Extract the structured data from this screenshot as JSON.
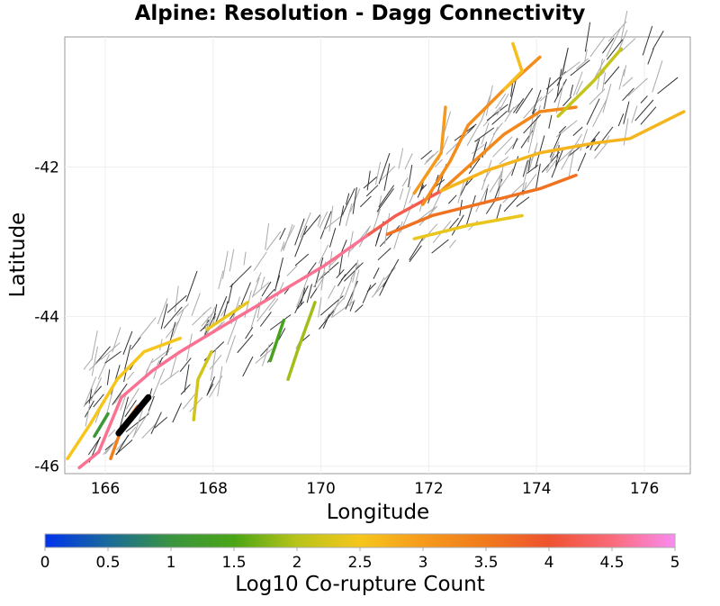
{
  "chart_data": {
    "type": "map",
    "title": "Alpine: Resolution - Dagg Connectivity",
    "xlabel": "Longitude",
    "ylabel": "Latitude",
    "xlim": [
      165.25,
      176.85
    ],
    "ylim": [
      -46.1,
      -40.26
    ],
    "xticks": [
      166,
      168,
      170,
      172,
      174,
      176
    ],
    "yticks": [
      -42,
      -44,
      -46
    ],
    "grid": true,
    "colorbar": {
      "label": "Log10 Co-rupture Count",
      "range": [
        0,
        5
      ],
      "ticks": [
        "0",
        "0.5",
        "1",
        "1.5",
        "2",
        "2.5",
        "3",
        "3.5",
        "4",
        "4.5",
        "5"
      ],
      "stops": [
        {
          "v": 0,
          "c": "#0033ee"
        },
        {
          "v": 0.5,
          "c": "#1a6a9a"
        },
        {
          "v": 1,
          "c": "#3a9440"
        },
        {
          "v": 1.5,
          "c": "#4aa516"
        },
        {
          "v": 2,
          "c": "#b8c41a"
        },
        {
          "v": 2.5,
          "c": "#f6c61c"
        },
        {
          "v": 3,
          "c": "#f69a1c"
        },
        {
          "v": 3.5,
          "c": "#f07a1c"
        },
        {
          "v": 4,
          "c": "#ee5230"
        },
        {
          "v": 4.5,
          "c": "#fa6a7a"
        },
        {
          "v": 5,
          "c": "#f98cf0"
        }
      ]
    },
    "source_fault": {
      "name": "Alpine: Resolution - Dagg",
      "points": [
        [
          166.25,
          -45.56
        ],
        [
          166.8,
          -45.08
        ]
      ]
    },
    "faults": [
      {
        "value": 4.6,
        "points": [
          [
            165.52,
            -46.02
          ],
          [
            165.88,
            -45.81
          ],
          [
            166.3,
            -45.08
          ],
          [
            166.88,
            -44.72
          ],
          [
            167.39,
            -44.47
          ],
          [
            168.22,
            -44.11
          ],
          [
            169.06,
            -43.75
          ],
          [
            170.06,
            -43.32
          ],
          [
            170.89,
            -42.9
          ]
        ]
      },
      {
        "value": 4.2,
        "points": [
          [
            170.89,
            -42.9
          ],
          [
            171.39,
            -42.65
          ],
          [
            172.23,
            -42.32
          ]
        ]
      },
      {
        "value": 3.3,
        "points": [
          [
            172.23,
            -42.32
          ],
          [
            173.4,
            -41.56
          ],
          [
            174.06,
            -41.26
          ],
          [
            174.73,
            -41.2
          ]
        ]
      },
      {
        "value": 2.7,
        "points": [
          [
            172.23,
            -42.32
          ],
          [
            173.06,
            -42.05
          ],
          [
            174.06,
            -41.81
          ],
          [
            175.07,
            -41.68
          ],
          [
            175.73,
            -41.62
          ],
          [
            176.73,
            -41.26
          ]
        ]
      },
      {
        "value": 3.2,
        "points": [
          [
            171.89,
            -42.5
          ],
          [
            172.39,
            -41.93
          ],
          [
            172.73,
            -41.44
          ],
          [
            173.4,
            -40.96
          ],
          [
            174.06,
            -40.53
          ]
        ]
      },
      {
        "value": 3.0,
        "points": [
          [
            171.73,
            -42.35
          ],
          [
            172.23,
            -41.81
          ],
          [
            172.31,
            -41.2
          ]
        ]
      },
      {
        "value": 2.6,
        "points": [
          [
            173.4,
            -40.96
          ],
          [
            173.73,
            -40.72
          ],
          [
            173.56,
            -40.35
          ]
        ]
      },
      {
        "value": 2.1,
        "points": [
          [
            174.4,
            -41.32
          ],
          [
            175.07,
            -40.84
          ],
          [
            175.57,
            -40.42
          ]
        ]
      },
      {
        "value": 3.6,
        "points": [
          [
            171.23,
            -42.9
          ],
          [
            172.06,
            -42.65
          ],
          [
            173.06,
            -42.47
          ],
          [
            174.06,
            -42.29
          ],
          [
            174.73,
            -42.11
          ]
        ]
      },
      {
        "value": 2.4,
        "points": [
          [
            171.73,
            -42.96
          ],
          [
            172.73,
            -42.78
          ],
          [
            173.73,
            -42.65
          ]
        ]
      },
      {
        "value": 2.5,
        "points": [
          [
            165.3,
            -45.9
          ],
          [
            165.72,
            -45.44
          ],
          [
            166.22,
            -44.84
          ],
          [
            166.72,
            -44.47
          ],
          [
            167.39,
            -44.29
          ]
        ]
      },
      {
        "value": 2.4,
        "points": [
          [
            167.89,
            -44.17
          ],
          [
            168.64,
            -43.81
          ]
        ]
      },
      {
        "value": 1.4,
        "points": [
          [
            169.31,
            -44.05
          ],
          [
            169.06,
            -44.59
          ]
        ]
      },
      {
        "value": 1.9,
        "points": [
          [
            169.89,
            -43.81
          ],
          [
            169.56,
            -44.47
          ],
          [
            169.39,
            -44.84
          ]
        ]
      },
      {
        "value": 2.2,
        "points": [
          [
            167.64,
            -45.38
          ],
          [
            167.72,
            -44.84
          ],
          [
            167.97,
            -44.47
          ]
        ]
      },
      {
        "value": 3.4,
        "points": [
          [
            166.1,
            -45.9
          ],
          [
            166.3,
            -45.5
          ],
          [
            166.6,
            -45.2
          ]
        ]
      },
      {
        "value": 1.1,
        "points": [
          [
            165.8,
            -45.6
          ],
          [
            166.05,
            -45.3
          ]
        ]
      }
    ]
  }
}
